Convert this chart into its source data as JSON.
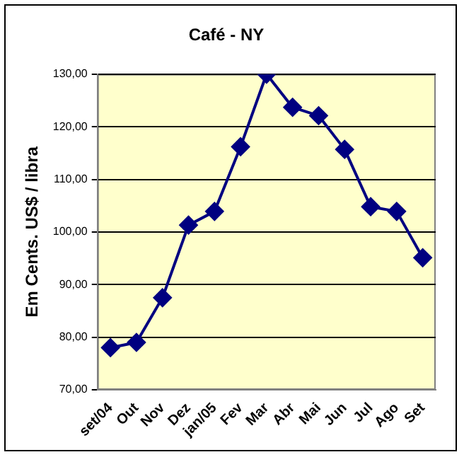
{
  "chart_data": {
    "type": "line",
    "title": "Café - NY",
    "ylabel": "Em Cents. US$ / libra",
    "categories": [
      "set/04",
      "Out",
      "Nov",
      "Dez",
      "jan/05",
      "Fev",
      "Mar",
      "Abr",
      "Mai",
      "Jun",
      "Jul",
      "Ago",
      "Set"
    ],
    "series": [
      {
        "color": "#000080",
        "values": [
          78,
          79,
          87.5,
          101.3,
          103.9,
          116.2,
          130,
          123.7,
          122.1,
          115.7,
          104.8,
          103.9,
          95.1
        ]
      }
    ],
    "ylim": [
      70,
      130
    ],
    "yticks": [
      {
        "value": 70,
        "label": "70,00"
      },
      {
        "value": 80,
        "label": "80,00"
      },
      {
        "value": 90,
        "label": "90,00"
      },
      {
        "value": 100,
        "label": "100,00"
      },
      {
        "value": 110,
        "label": "110,00"
      },
      {
        "value": 120,
        "label": "120,00"
      },
      {
        "value": 130,
        "label": "130,00"
      }
    ],
    "grid": "y",
    "legend": false,
    "marker": "diamond",
    "line_style": "solid"
  }
}
